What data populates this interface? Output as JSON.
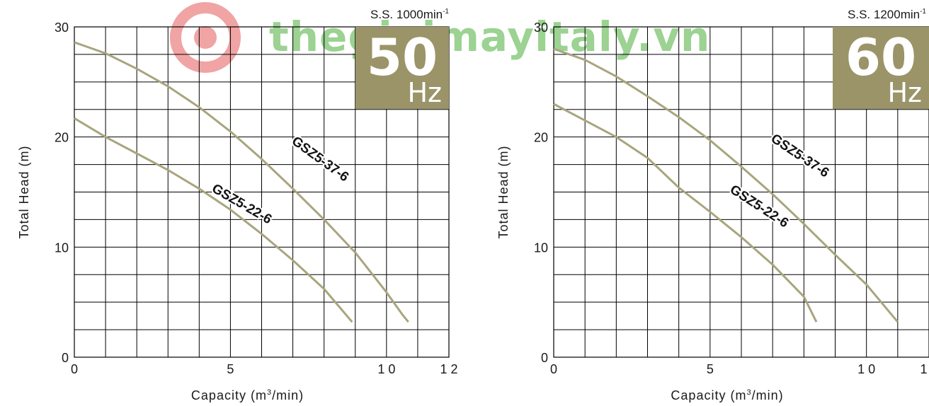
{
  "watermark": {
    "text": "thegioimayitaly.vn"
  },
  "colors": {
    "curve": "#a8a57e",
    "badge": "#9a9468",
    "grid": "#000000",
    "text": "#1a1a1a",
    "watermark_logo": "#e55a5a",
    "watermark_text": "#4caf3a"
  },
  "chart_data": [
    {
      "type": "line",
      "speed_label": "S.S. 1000min",
      "speed_sup": "-1",
      "badge": {
        "number": "50",
        "unit": "Hz"
      },
      "xlabel_pre": "Capacity (m",
      "xlabel_sup": "3",
      "xlabel_post": "/min)",
      "ylabel": "Total Head (m)",
      "xlim": [
        0,
        12
      ],
      "ylim": [
        0,
        30
      ],
      "x_tick_labels": [
        {
          "value": 0,
          "label": "0"
        },
        {
          "value": 5,
          "label": "5"
        },
        {
          "value": 10,
          "label": "1 0"
        },
        {
          "value": 12,
          "label": "1 2"
        }
      ],
      "y_tick_labels": [
        {
          "value": 0,
          "label": "0"
        },
        {
          "value": 10,
          "label": "10"
        },
        {
          "value": 20,
          "label": "20"
        },
        {
          "value": 30,
          "label": "30"
        }
      ],
      "grid": true,
      "series": [
        {
          "name": "GSZ5-37-6",
          "points": [
            [
              0,
              28.6
            ],
            [
              1,
              27.6
            ],
            [
              2,
              26.2
            ],
            [
              3,
              24.6
            ],
            [
              4,
              22.7
            ],
            [
              5,
              20.5
            ],
            [
              6,
              18.0
            ],
            [
              7,
              15.3
            ],
            [
              8,
              12.5
            ],
            [
              9,
              9.5
            ],
            [
              10,
              5.9
            ],
            [
              10.5,
              3.9
            ],
            [
              10.7,
              3.2
            ]
          ]
        },
        {
          "name": "GSZ5-22-6",
          "points": [
            [
              0,
              21.7
            ],
            [
              1,
              20.0
            ],
            [
              2,
              18.5
            ],
            [
              3,
              17.0
            ],
            [
              4,
              15.3
            ],
            [
              5,
              13.4
            ],
            [
              6,
              11.2
            ],
            [
              7,
              8.8
            ],
            [
              8,
              6.2
            ],
            [
              8.9,
              3.2
            ]
          ]
        }
      ]
    },
    {
      "type": "line",
      "speed_label": "S.S. 1200min",
      "speed_sup": "-1",
      "badge": {
        "number": "60",
        "unit": "Hz"
      },
      "xlabel_pre": "Capacity (m",
      "xlabel_sup": "3",
      "xlabel_post": "/min)",
      "ylabel": "Total Head (m)",
      "xlim": [
        0,
        12
      ],
      "ylim": [
        0,
        30
      ],
      "x_tick_labels": [
        {
          "value": 0,
          "label": "0"
        },
        {
          "value": 5,
          "label": "5"
        },
        {
          "value": 10,
          "label": "1 0"
        },
        {
          "value": 12,
          "label": "1 2"
        }
      ],
      "y_tick_labels": [
        {
          "value": 0,
          "label": "0"
        },
        {
          "value": 10,
          "label": "10"
        },
        {
          "value": 20,
          "label": "20"
        },
        {
          "value": 30,
          "label": "30"
        }
      ],
      "grid": true,
      "series": [
        {
          "name": "GSZ5-37-6",
          "points": [
            [
              0,
              28.0
            ],
            [
              1,
              27.0
            ],
            [
              2,
              25.5
            ],
            [
              3,
              23.7
            ],
            [
              4,
              21.8
            ],
            [
              5,
              19.7
            ],
            [
              6,
              17.3
            ],
            [
              7,
              14.8
            ],
            [
              8,
              12.1
            ],
            [
              9,
              9.3
            ],
            [
              10,
              6.6
            ],
            [
              11,
              3.2
            ]
          ]
        },
        {
          "name": "GSZ5-22-6",
          "points": [
            [
              0,
              23.0
            ],
            [
              1,
              21.5
            ],
            [
              2,
              20.0
            ],
            [
              3,
              18.1
            ],
            [
              4,
              15.4
            ],
            [
              5,
              13.2
            ],
            [
              6,
              10.9
            ],
            [
              7,
              8.4
            ],
            [
              8,
              5.5
            ],
            [
              8.4,
              3.2
            ]
          ]
        }
      ]
    }
  ]
}
